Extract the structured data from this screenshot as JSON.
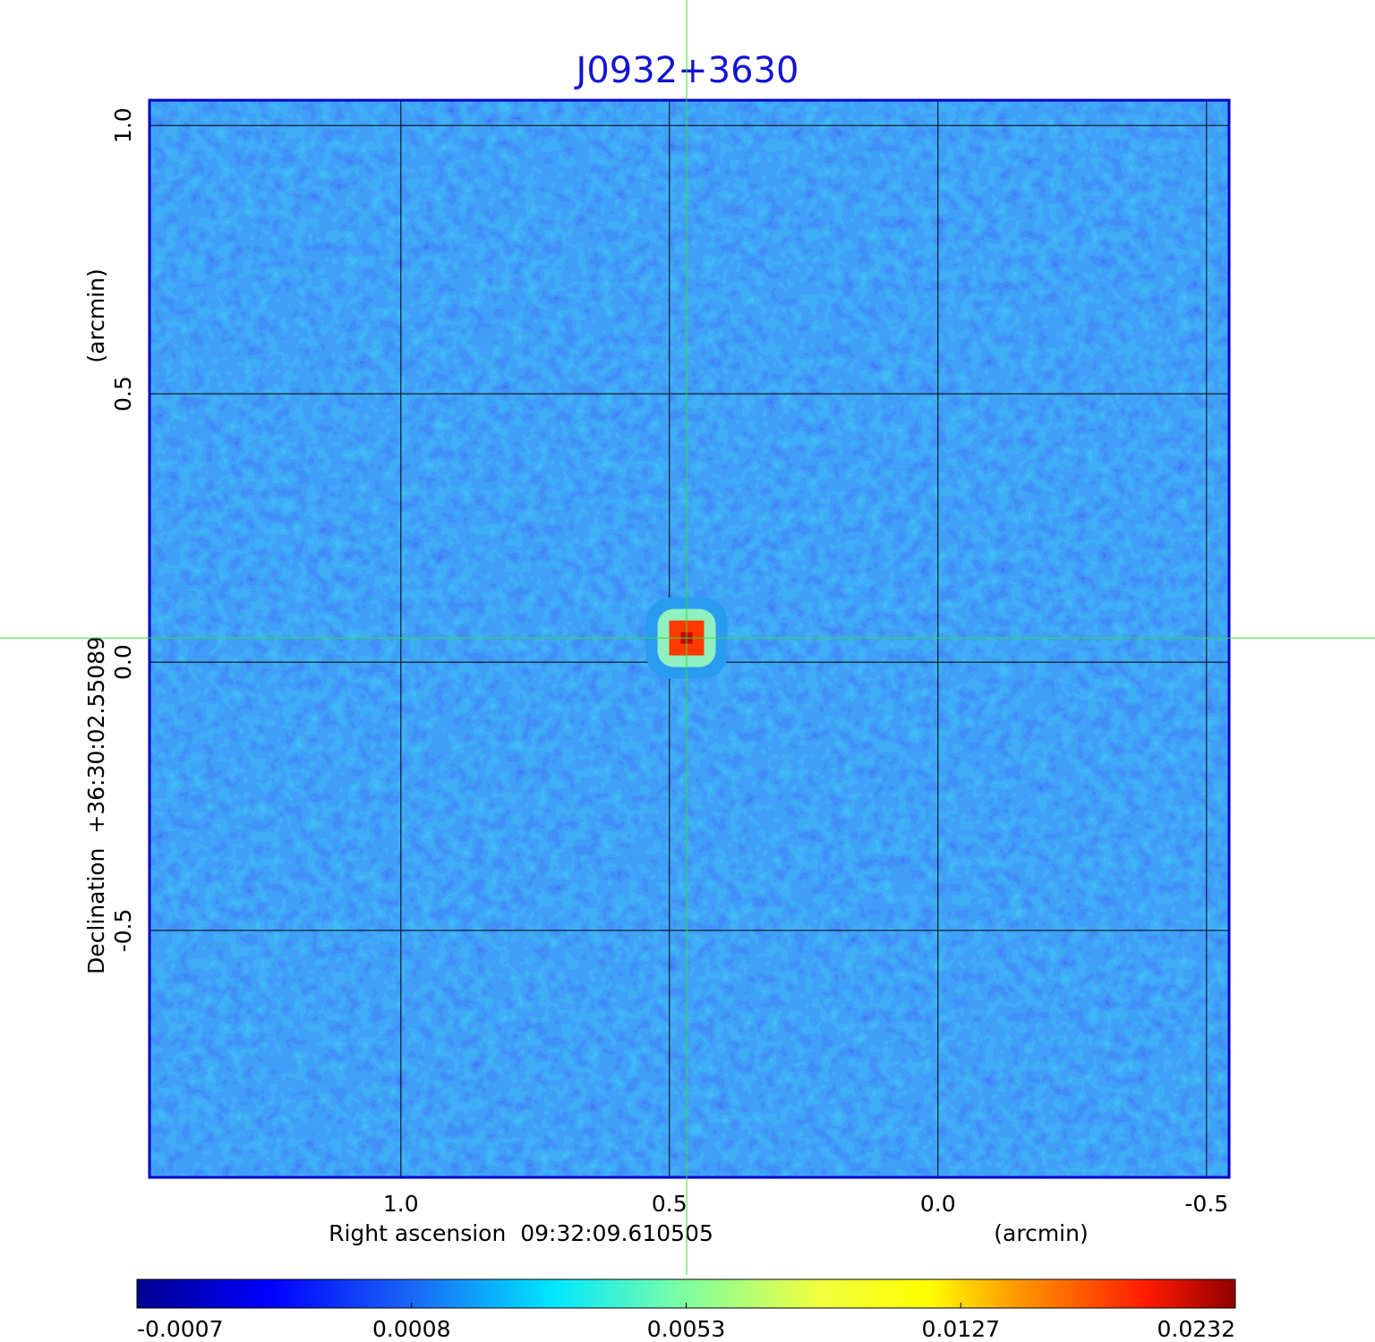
{
  "chart_data": {
    "type": "image",
    "title": "J0932+3630",
    "x_label": "Right ascension  09:32:09.610505",
    "x_unit": "(arcmin)",
    "y_label": "Declination  +36:30:02.55089",
    "y_unit": "(arcmin)",
    "xlim": [
      1.468,
      -0.542
    ],
    "ylim": [
      -0.96,
      1.047
    ],
    "xticks": [
      {
        "value": 1,
        "label": "1.0"
      },
      0.5,
      {
        "value": 0,
        "label": "0.0"
      },
      -0.5
    ],
    "yticks": [
      -0.5,
      {
        "value": 0,
        "label": "0.0"
      },
      0.5,
      {
        "value": 1,
        "label": "1.0"
      }
    ],
    "grid": true,
    "source": {
      "x": 0.468,
      "y": 0.045,
      "peak": 0.0232
    },
    "colorbar": {
      "ticks": [
        -0.0007,
        0.0008,
        0.0053,
        0.0127,
        0.0232
      ]
    }
  }
}
